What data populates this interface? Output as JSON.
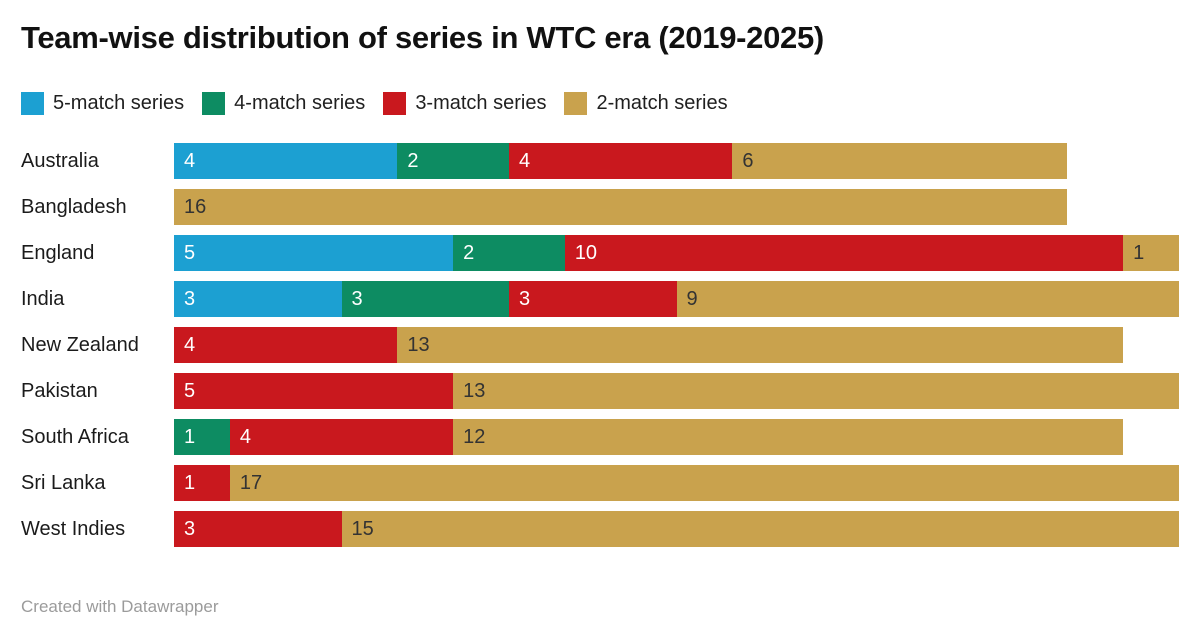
{
  "header": {
    "title": "Team-wise distribution of series in WTC era (2019-2025)"
  },
  "footer": {
    "text": "Created with Datawrapper"
  },
  "colors": {
    "series_5match": "#1CA0D2",
    "series_4match": "#0D8C62",
    "series_3match": "#C9181E",
    "series_2match": "#C9A24D",
    "value_label_on_dark": "#FFFFFF",
    "value_label_on_gold": "#333333",
    "title_text": "#111111",
    "footer_text": "#9B9B9B"
  },
  "chart_data": {
    "type": "bar",
    "stacked": true,
    "orientation": "horizontal",
    "title": "Team-wise distribution of series in WTC era (2019-2025)",
    "xlabel": "",
    "ylabel": "",
    "xmax": 18,
    "grid": false,
    "legend_position": "top",
    "value_labels": "inside-left",
    "categories": [
      "Australia",
      "Bangladesh",
      "England",
      "India",
      "New Zealand",
      "Pakistan",
      "South Africa",
      "Sri Lanka",
      "West Indies"
    ],
    "series": [
      {
        "name": "5-match series",
        "color": "#1CA0D2",
        "label_color": "#FFFFFF",
        "values": [
          4,
          0,
          5,
          3,
          0,
          0,
          0,
          0,
          0
        ]
      },
      {
        "name": "4-match series",
        "color": "#0D8C62",
        "label_color": "#FFFFFF",
        "values": [
          2,
          0,
          2,
          3,
          0,
          0,
          1,
          0,
          0
        ]
      },
      {
        "name": "3-match series",
        "color": "#C9181E",
        "label_color": "#FFFFFF",
        "values": [
          4,
          0,
          10,
          3,
          4,
          5,
          4,
          1,
          3
        ]
      },
      {
        "name": "2-match series",
        "color": "#C9A24D",
        "label_color": "#333333",
        "values": [
          6,
          16,
          1,
          9,
          13,
          13,
          12,
          17,
          15
        ]
      }
    ],
    "totals": [
      16,
      16,
      18,
      18,
      17,
      18,
      17,
      18,
      18
    ]
  }
}
